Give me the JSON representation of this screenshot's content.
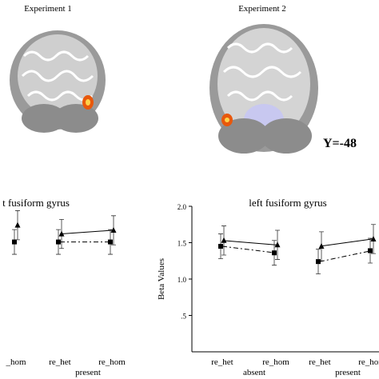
{
  "header": {
    "experiment_1": "Experiment 1",
    "experiment_2": "Experiment 2",
    "slice": "Y=-48"
  },
  "chart_data": [
    {
      "type": "line",
      "title": "t fusiform gyrus",
      "categories": [
        "_hom",
        "re_het",
        "re_hom"
      ],
      "group_labels": [
        "present"
      ],
      "ylim": [
        0,
        2
      ],
      "series": [
        {
          "name": "triangle",
          "color": "#000000",
          "marker": "triangle",
          "dash": false,
          "values": [
            1.74,
            1.62,
            1.67
          ],
          "errors": [
            0.2,
            0.2,
            0.2
          ]
        },
        {
          "name": "square",
          "color": "#000000",
          "marker": "square",
          "dash": true,
          "values": [
            1.51,
            1.51,
            1.51
          ],
          "errors": [
            0.17,
            0.17,
            0.17
          ]
        }
      ]
    },
    {
      "type": "line",
      "title": "left fusiform gyrus",
      "ylabel": "Beta Values",
      "categories": [
        "re_het",
        "re_hom",
        "re_het",
        "re_hom"
      ],
      "group_labels": [
        "absent",
        "present"
      ],
      "ylim": [
        0,
        2
      ],
      "yticks": [
        {
          "value": 0.5,
          "label": ".5"
        },
        {
          "value": 1,
          "label": "1.0"
        },
        1.5,
        {
          "value": 2,
          "label": "2.0"
        }
      ],
      "series": [
        {
          "name": "triangle",
          "color": "#000000",
          "marker": "triangle",
          "dash": false,
          "values": [
            1.53,
            1.47,
            1.45,
            1.55
          ],
          "errors": [
            0.2,
            0.2,
            0.2,
            0.2
          ]
        },
        {
          "name": "square",
          "color": "#000000",
          "marker": "square",
          "dash": true,
          "values": [
            1.45,
            1.36,
            1.24,
            1.39
          ],
          "errors": [
            0.17,
            0.17,
            0.17,
            0.17
          ]
        }
      ]
    }
  ]
}
